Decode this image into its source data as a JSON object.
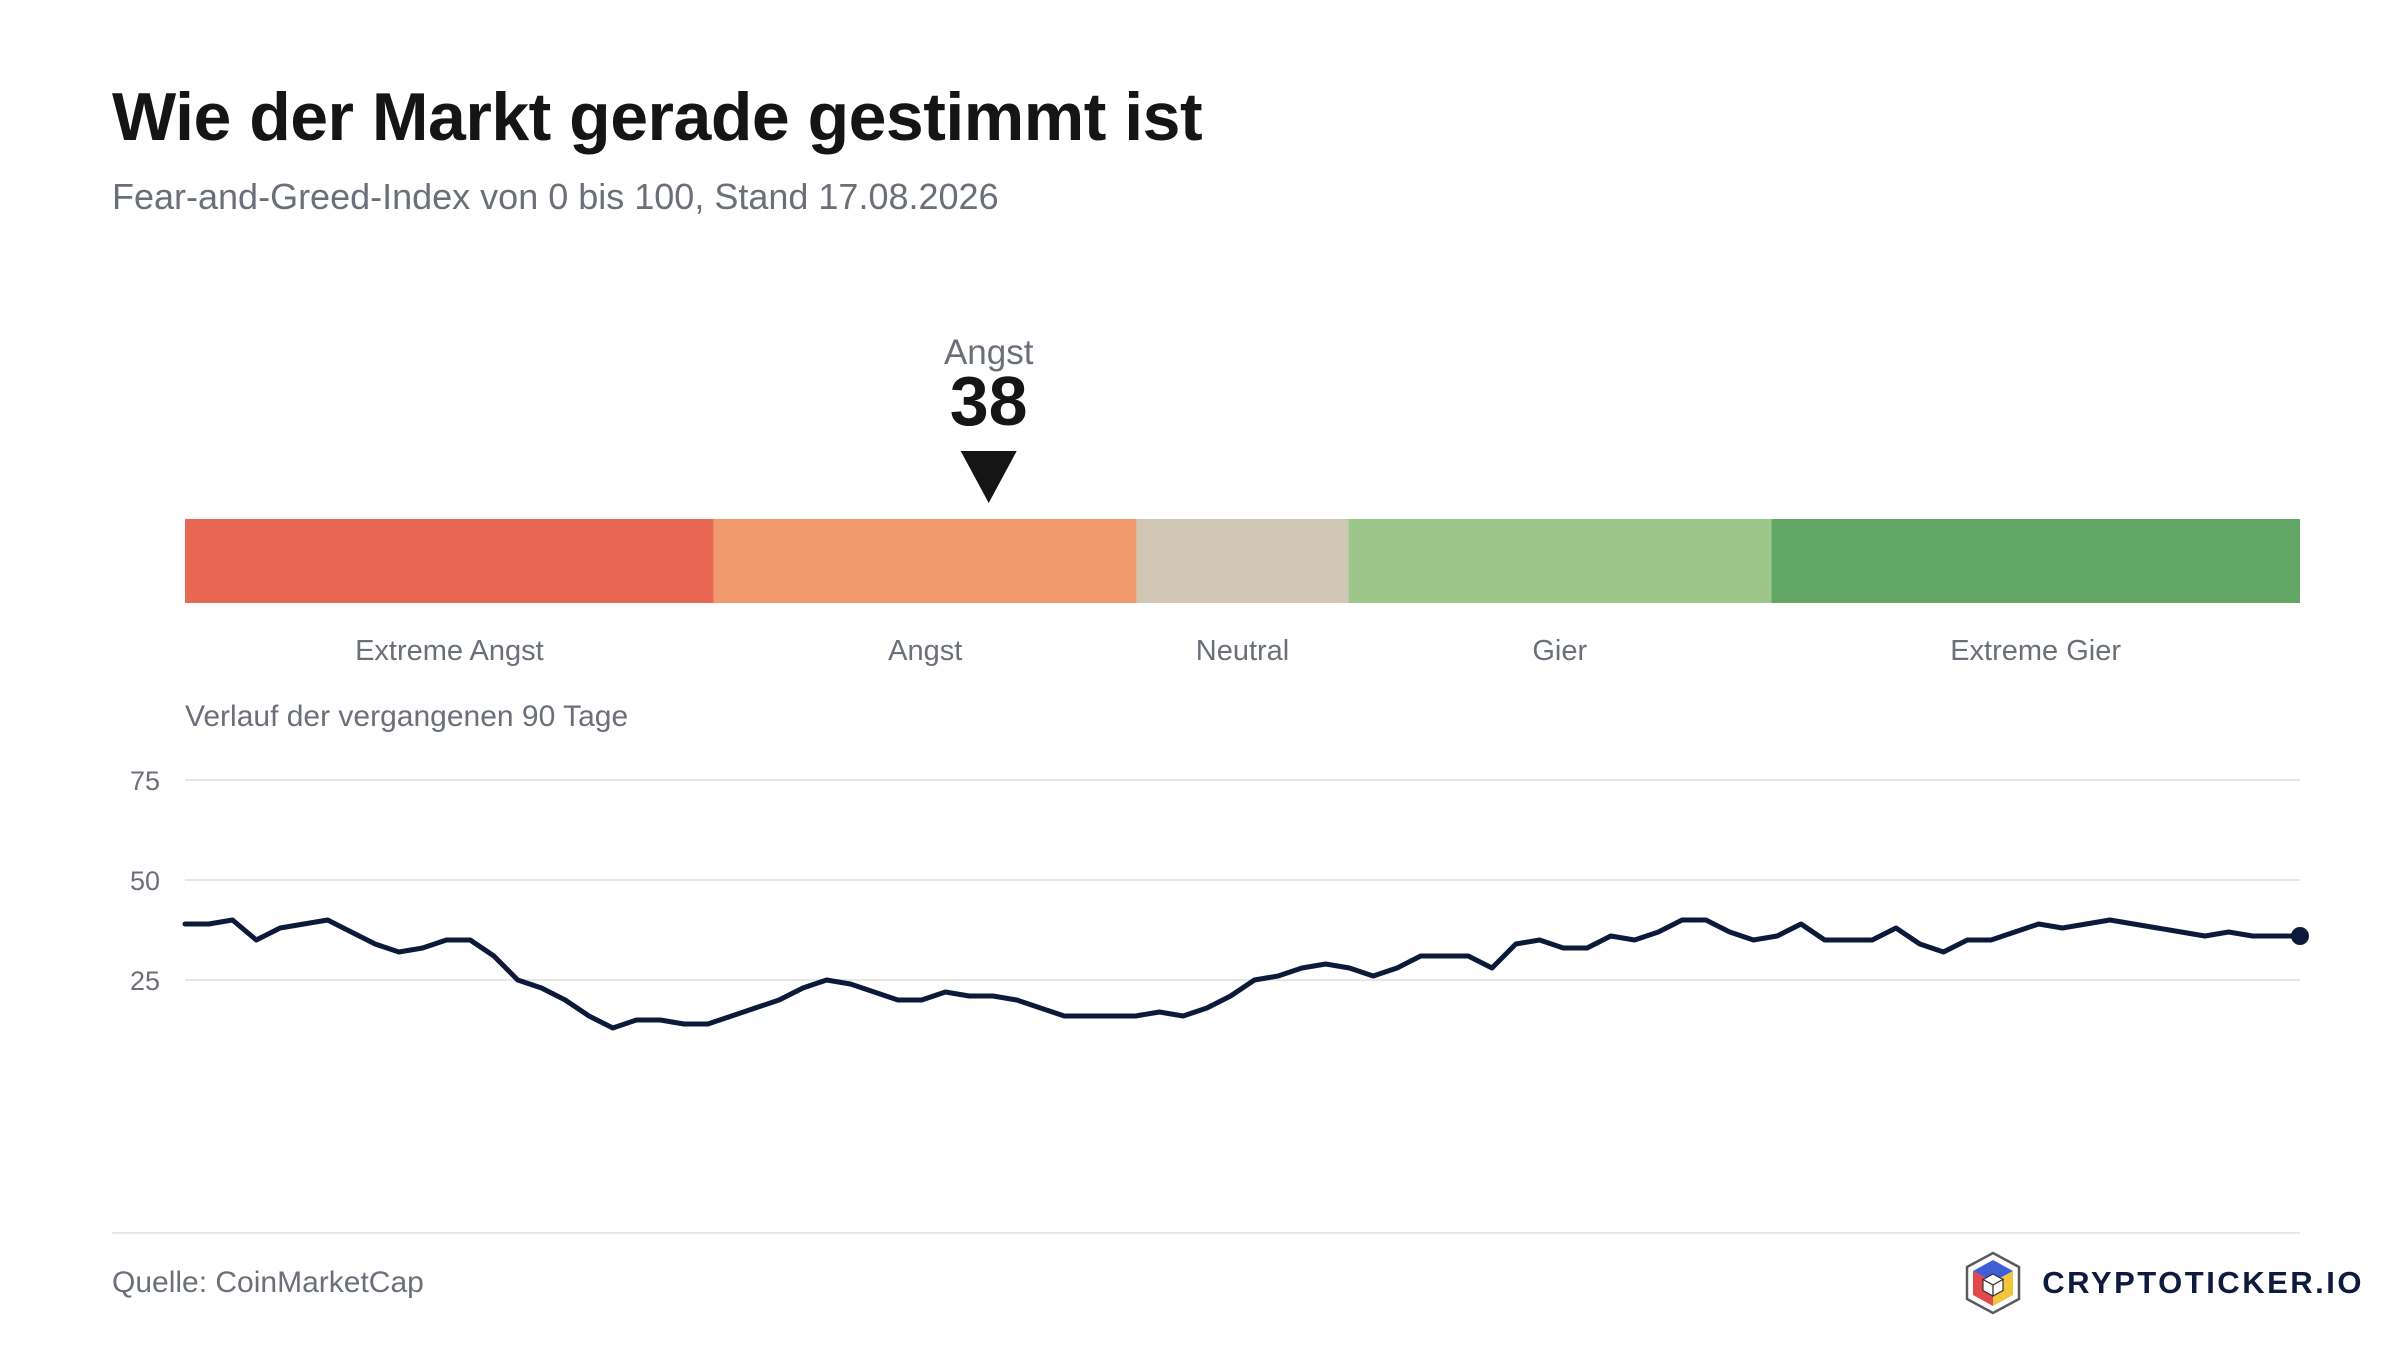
{
  "header": {
    "title": "Wie der Markt gerade gestimmt ist",
    "subtitle": "Fear-and-Greed-Index von 0 bis 100, Stand 17.08.2026"
  },
  "history_label": "Verlauf der vergangenen 90 Tage",
  "footer": {
    "source": "Quelle: CoinMarketCap",
    "brand": "CRYPTOTICKER.IO"
  },
  "chart_data": [
    {
      "type": "bar",
      "range": [
        0,
        100
      ],
      "current": {
        "value": 38,
        "label": "Angst"
      },
      "zones": [
        {
          "label": "Extreme Angst",
          "from": 0,
          "to": 25,
          "color": "#e86853"
        },
        {
          "label": "Angst",
          "from": 25,
          "to": 45,
          "color": "#ef996d"
        },
        {
          "label": "Neutral",
          "from": 45,
          "to": 55,
          "color": "#d0c8b5"
        },
        {
          "label": "Gier",
          "from": 55,
          "to": 75,
          "color": "#9dc68b"
        },
        {
          "label": "Extreme Gier",
          "from": 75,
          "to": 100,
          "color": "#62a766"
        }
      ]
    },
    {
      "type": "line",
      "color": "#0c1a3a",
      "yticks": [
        25,
        50,
        75
      ],
      "ylim": [
        -20,
        80
      ],
      "values": [
        39,
        39,
        40,
        35,
        38,
        39,
        40,
        37,
        34,
        32,
        33,
        35,
        35,
        31,
        25,
        23,
        20,
        16,
        13,
        15,
        15,
        14,
        14,
        16,
        18,
        20,
        23,
        25,
        24,
        22,
        20,
        20,
        22,
        21,
        21,
        20,
        18,
        16,
        16,
        16,
        16,
        17,
        16,
        18,
        21,
        25,
        26,
        28,
        29,
        28,
        26,
        28,
        31,
        31,
        31,
        28,
        34,
        35,
        33,
        33,
        36,
        35,
        37,
        40,
        40,
        37,
        35,
        36,
        39,
        35,
        35,
        35,
        38,
        34,
        32,
        35,
        35,
        37,
        39,
        38,
        39,
        40,
        39,
        38,
        37,
        36,
        37,
        36,
        36,
        36
      ]
    }
  ]
}
